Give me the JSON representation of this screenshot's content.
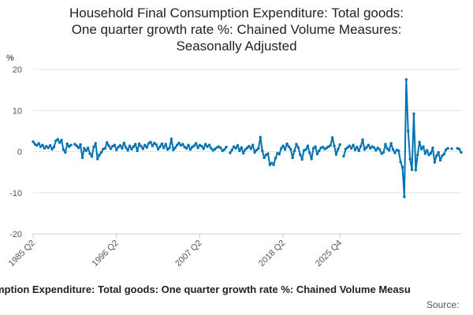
{
  "chart_data": {
    "type": "line",
    "title": [
      "Household Final Consumption Expenditure: Total goods:",
      "One quarter growth rate %: Chained Volume Measures:",
      "Seasonally Adjusted"
    ],
    "ylabel": "%",
    "ylim": [
      -20,
      20
    ],
    "yticks": [
      20,
      10,
      0,
      -10,
      -20
    ],
    "xticks": [
      "1985 Q2",
      "1996 Q2",
      "2007 Q2",
      "2018 Q2",
      "2025 Q4"
    ],
    "legend_text": "Household Final Consumption Expenditure: Total goods: One quarter growth rate %: Chained Volume Measures",
    "source_text": "Source:",
    "grid": true,
    "series_color": "#0072b2",
    "start_quarter": "1985 Q2",
    "series": [
      {
        "values": [
          2.4,
          1.8,
          1.5,
          2.0,
          1.2,
          1.6,
          0.8,
          1.3,
          0.9,
          1.5,
          0.6,
          1.1,
          2.6,
          3.0,
          2.2,
          2.8,
          0.5,
          -0.2,
          1.9,
          1.2,
          1.6,
          null,
          1.8,
          1.4,
          0.9,
          1.7,
          -1.5,
          0.8,
          0.2,
          0.9,
          -0.5,
          -1.2,
          1.1,
          2.0,
          -1.8,
          -0.8,
          -0.2,
          0.6,
          0.8,
          2.2,
          1.4,
          0.7,
          1.3,
          1.6,
          0.4,
          1.1,
          1.5,
          0.8,
          2.1,
          1.0,
          0.3,
          1.4,
          0.6,
          1.2,
          1.8,
          0.2,
          1.9,
          1.3,
          0.7,
          1.6,
          1.0,
          2.0,
          2.3,
          1.4,
          2.1,
          1.7,
          0.6,
          1.2,
          1.9,
          0.9,
          1.8,
          0.5,
          0.9,
          3.1,
          0.4,
          0.9,
          1.6,
          2.1,
          1.5,
          1.8,
          1.1,
          0.8,
          1.6,
          0.5,
          1.1,
          1.4,
          2.0,
          0.9,
          1.6,
          1.3,
          0.7,
          1.8,
          1.2,
          1.6,
          0.8,
          0.3,
          0.6,
          1.0,
          1.2,
          0.9,
          0.2,
          0.5,
          1.1,
          null,
          -0.3,
          0.4,
          1.2,
          0.8,
          1.5,
          0.2,
          1.0,
          -0.4,
          0.5,
          0.9,
          1.3,
          0.7,
          1.6,
          -0.2,
          0.4,
          0.8,
          3.5,
          0.2,
          -1.5,
          -0.8,
          -0.5,
          -3.2,
          -2.8,
          -3.2,
          -1.6,
          -0.4,
          -0.6,
          0.8,
          1.4,
          0.5,
          1.9,
          1.2,
          0.6,
          -1.5,
          0.2,
          1.8,
          1.0,
          -0.7,
          -1.9,
          0.3,
          0.5,
          1.4,
          -0.3,
          -1.8,
          0.8,
          1.2,
          -0.6,
          0.2,
          0.9,
          1.1,
          0.6,
          0.9,
          1.2,
          1.5,
          3.4,
          1.4,
          -0.7,
          0.6,
          1.7,
          null,
          -1.1,
          0.6,
          1.0,
          1.4,
          0.8,
          1.6,
          0.4,
          1.1,
          0.2,
          1.3,
          2.9,
          0.5,
          1.0,
          1.6,
          0.8,
          1.2,
          1.0,
          0.3,
          0.9,
          0.5,
          -0.5,
          -0.2,
          1.8,
          0.7,
          0.3,
          2.0,
          0.5,
          -0.3,
          0.4,
          0.2,
          -2.5,
          -3.8,
          -11.0,
          17.5,
          5.0,
          -1.8,
          -4.4,
          9.2,
          -4.5,
          -0.8,
          2.3,
          0.6,
          1.2,
          -0.5,
          0.3,
          -0.8,
          -0.4,
          0.9,
          -2.6,
          -1.0,
          -0.2,
          -2.1,
          -1.0,
          -0.6,
          0.5,
          0.8,
          null,
          0.7,
          null,
          null,
          0.8,
          0.6,
          -0.2
        ]
      }
    ]
  },
  "legend_visible": "mption Expenditure: Total goods: One quarter growth rate %: Chained Volume Measu"
}
